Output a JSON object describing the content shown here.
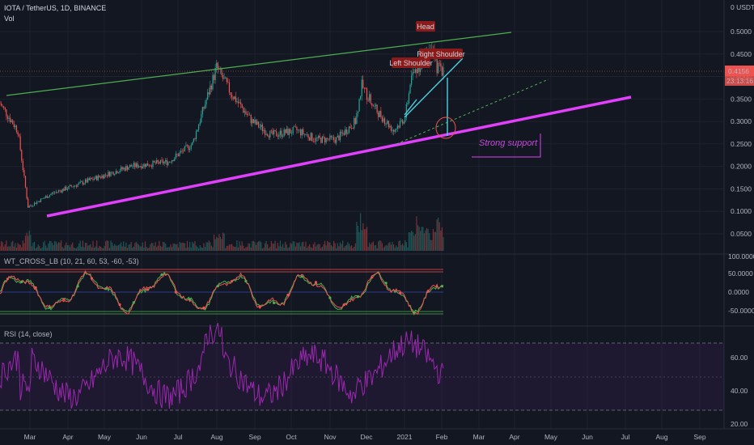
{
  "header": {
    "symbol_line": "IOTA / TetherUS, 1D, BINANCE",
    "volume_label": "Vol"
  },
  "price_axis": {
    "currency_label": "0 USDT",
    "ticks": [
      "0.5000",
      "0.4500",
      "0.4000",
      "0.3500",
      "0.3000",
      "0.2500",
      "0.2000",
      "0.1500",
      "0.1000",
      "0.0500"
    ],
    "current_price": "0.4156",
    "countdown": "23:13:16"
  },
  "wt_panel": {
    "title": "WT_CROSS_LB (10, 21, 60, 53, -60, -53)",
    "ticks": [
      "100.0000",
      "50.0000",
      "0.0000",
      "-50.0000"
    ]
  },
  "rsi_panel": {
    "title": "RSI (14, close)",
    "ticks": [
      "60.00",
      "40.00",
      "20.00"
    ]
  },
  "time_axis": {
    "labels": [
      "Mar",
      "Apr",
      "May",
      "Jun",
      "Jul",
      "Aug",
      "Sep",
      "Oct",
      "Nov",
      "Dec",
      "2021",
      "Feb",
      "Mar",
      "Apr",
      "May",
      "Jun",
      "Jul",
      "Aug",
      "Sep"
    ]
  },
  "annotations": {
    "head": "Head",
    "left_shoulder": "Left Shoulder",
    "right_shoulder": "Right Shoulder",
    "support": "Strong support"
  },
  "colors": {
    "background": "#131722",
    "bull": "#26a69a",
    "bear": "#ef5350",
    "support_line": "#e040fb",
    "resistance_line": "#4caf50",
    "neckline": "#4dd0e1",
    "rsi_line": "#9c27b0",
    "label_bg": "#8b1a1a"
  },
  "chart_data": {
    "type": "candlestick",
    "symbol": "IOTA/USDT",
    "timeframe": "1D",
    "approx_close_path": [
      {
        "date": "2020-02-20",
        "close": 0.34
      },
      {
        "date": "2020-03-05",
        "close": 0.28
      },
      {
        "date": "2020-03-13",
        "close": 0.11
      },
      {
        "date": "2020-04-01",
        "close": 0.14
      },
      {
        "date": "2020-05-01",
        "close": 0.17
      },
      {
        "date": "2020-06-01",
        "close": 0.2
      },
      {
        "date": "2020-07-01",
        "close": 0.21
      },
      {
        "date": "2020-07-20",
        "close": 0.25
      },
      {
        "date": "2020-08-08",
        "close": 0.42
      },
      {
        "date": "2020-08-20",
        "close": 0.36
      },
      {
        "date": "2020-09-05",
        "close": 0.3
      },
      {
        "date": "2020-09-20",
        "close": 0.27
      },
      {
        "date": "2020-10-10",
        "close": 0.28
      },
      {
        "date": "2020-10-25",
        "close": 0.26
      },
      {
        "date": "2020-11-10",
        "close": 0.26
      },
      {
        "date": "2020-11-25",
        "close": 0.3
      },
      {
        "date": "2020-11-30",
        "close": 0.38
      },
      {
        "date": "2020-12-10",
        "close": 0.33
      },
      {
        "date": "2020-12-25",
        "close": 0.28
      },
      {
        "date": "2021-01-03",
        "close": 0.31
      },
      {
        "date": "2021-01-08",
        "close": 0.4
      },
      {
        "date": "2021-01-18",
        "close": 0.44
      },
      {
        "date": "2021-01-22",
        "close": 0.47
      },
      {
        "date": "2021-01-28",
        "close": 0.42
      },
      {
        "date": "2021-02-02",
        "close": 0.4156
      }
    ]
  }
}
